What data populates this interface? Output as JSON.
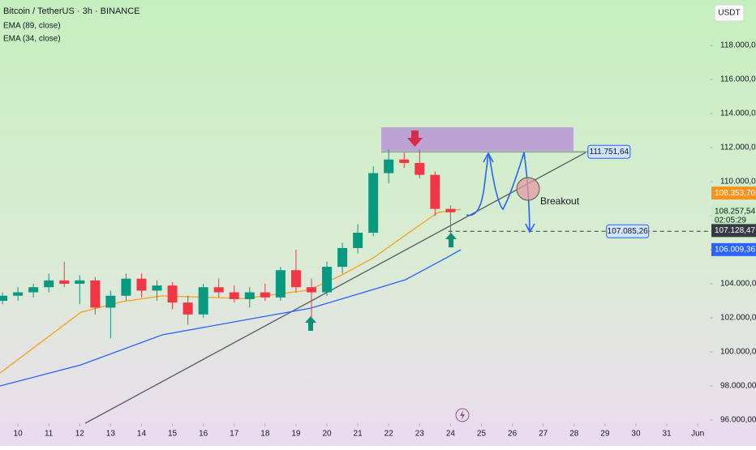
{
  "chart_data": {
    "type": "candlestick",
    "title": "Bitcoin / TetherUS · 3h · BINANCE",
    "currency": "USDT",
    "x": [
      9.5,
      10,
      10.5,
      11,
      11.5,
      12,
      12.5,
      13,
      13.5,
      14,
      14.5,
      15,
      15.5,
      16,
      16.5,
      17,
      17.5,
      18,
      18.5,
      19,
      19.5,
      20,
      20.5,
      21,
      21.5,
      22,
      22.5,
      23,
      23.5,
      24
    ],
    "open": [
      103000,
      103300,
      103500,
      103800,
      104200,
      104000,
      104200,
      102600,
      103300,
      104300,
      103600,
      103900,
      102900,
      102200,
      103800,
      103500,
      103100,
      103500,
      103200,
      104800,
      103800,
      103500,
      105000,
      106100,
      107000,
      110500,
      111300,
      111100,
      110400,
      108400
    ],
    "high": [
      103500,
      103800,
      104000,
      104600,
      105300,
      104500,
      104400,
      103600,
      104600,
      104600,
      104200,
      104100,
      103300,
      104000,
      104300,
      103900,
      103800,
      104000,
      105000,
      106000,
      104300,
      105300,
      106400,
      107500,
      110900,
      111900,
      111700,
      111900,
      110600,
      108600
    ],
    "low": [
      102800,
      103000,
      103200,
      103500,
      103800,
      102800,
      102200,
      100800,
      103000,
      103200,
      103000,
      102500,
      101600,
      102000,
      103200,
      102900,
      102600,
      103000,
      103000,
      103500,
      102000,
      103300,
      104600,
      105800,
      106800,
      109900,
      110800,
      110200,
      108000,
      106800
    ],
    "close": [
      103300,
      103500,
      103800,
      104200,
      104000,
      104200,
      102600,
      103300,
      104300,
      103600,
      103900,
      102900,
      102200,
      103800,
      103500,
      103100,
      103500,
      103200,
      104800,
      103800,
      103500,
      105000,
      106100,
      107000,
      110500,
      111300,
      111100,
      110400,
      108400,
      108200
    ],
    "up_color": "#089981",
    "down_color": "#f23645",
    "ema": [
      {
        "name": "EMA (89, close)",
        "color": "#2962ff",
        "x": [
          9.42,
          12.04,
          14.67,
          17.29,
          19.47,
          21.23,
          22.54,
          23.86,
          24.33
        ],
        "values": [
          98000,
          99240,
          101000,
          101860,
          102570,
          103520,
          104240,
          105520,
          106000
        ]
      },
      {
        "name": "EMA (34, close)",
        "color": "#f7a21b",
        "x": [
          9.42,
          12.04,
          13.36,
          14.67,
          17.29,
          19.39,
          20.44,
          21.5,
          22.54,
          23.59,
          24.33
        ],
        "values": [
          98760,
          102330,
          102950,
          103290,
          103140,
          103620,
          104480,
          105520,
          106860,
          108190,
          108380
        ]
      }
    ],
    "trendline": {
      "x": [
        12.18,
        28.37
      ],
      "y": [
        95810,
        111710
      ]
    },
    "zone": {
      "x": [
        21.76,
        27.98
      ],
      "y": [
        111810,
        113190
      ]
    },
    "callouts": [
      {
        "x": 28.5,
        "value": 111751.64,
        "label": "111.751,64"
      },
      {
        "x": 29.1,
        "value": 107085.26,
        "label": "107.085,26"
      }
    ],
    "level_from": 23.93,
    "annotation": "Breakout",
    "price_tags": [
      {
        "value": 108353.7,
        "label": "108.353,70",
        "color": "#f7931a"
      },
      {
        "value": 108257.54,
        "label": "108.257,54",
        "color": "#c8ecc4",
        "countdown": "02:05:29"
      },
      {
        "value": 107128.47,
        "label": "107.128,47",
        "color": "#363a45"
      },
      {
        "value": 106009.36,
        "label": "106.009,36",
        "color": "#2962ff"
      }
    ],
    "xlim": [
      9.42,
      32.39
    ],
    "ylim": [
      95810,
      120670
    ],
    "xticks": [
      10,
      11,
      12,
      13,
      14,
      15,
      16,
      17,
      18,
      19,
      20,
      21,
      22,
      23,
      24,
      25,
      26,
      27,
      28,
      29,
      30,
      31,
      {
        "value": 32,
        "label": "Jun"
      }
    ],
    "yticks": [
      {
        "value": 96000,
        "label": "96.000,00"
      },
      {
        "value": 98000,
        "label": "98.000,00"
      },
      {
        "value": 100000,
        "label": "100.000,00"
      },
      {
        "value": 102000,
        "label": "102.000,00"
      },
      {
        "value": 104000,
        "label": "104.000,00"
      },
      {
        "value": 106000,
        "label": "106.000,00"
      },
      {
        "value": 108000,
        "label": "108.000,00"
      },
      {
        "value": 110000,
        "label": "110.000,00"
      },
      {
        "value": 112000,
        "label": "112.000,00"
      },
      {
        "value": 114000,
        "label": "114.000,00"
      },
      {
        "value": 116000,
        "label": "116.000,00"
      },
      {
        "value": 118000,
        "label": "118.000,00"
      }
    ]
  }
}
